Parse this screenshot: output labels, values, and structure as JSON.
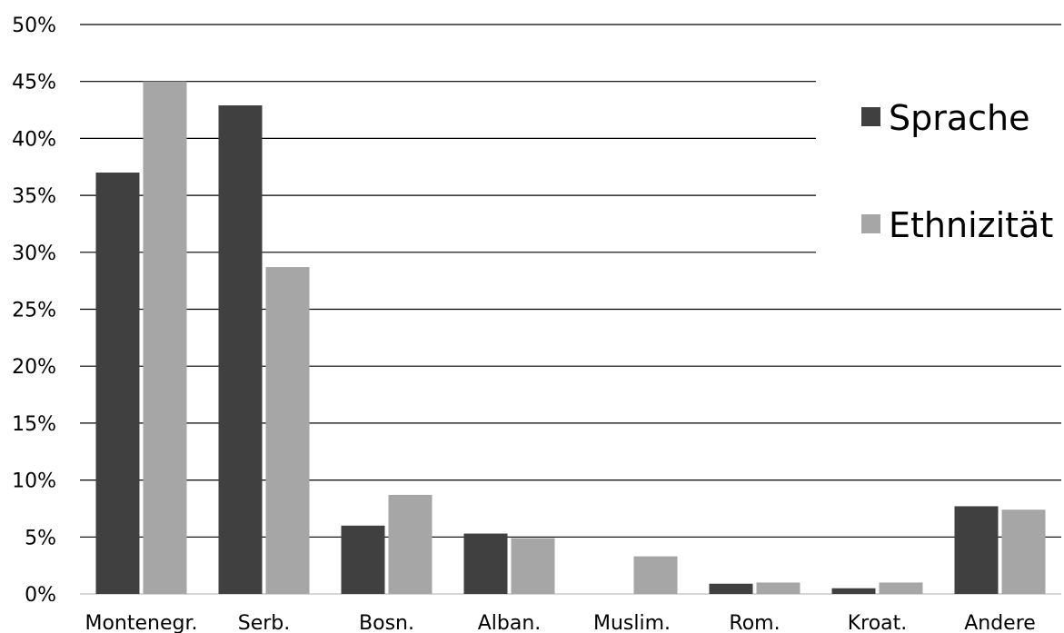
{
  "chart_data": {
    "type": "bar",
    "title": "",
    "xlabel": "",
    "ylabel": "",
    "ylim": [
      0,
      50
    ],
    "yticks": [
      0,
      5,
      10,
      15,
      20,
      25,
      30,
      35,
      40,
      45,
      50
    ],
    "ytick_labels": [
      "0%",
      "5%",
      "10%",
      "15%",
      "20%",
      "25%",
      "30%",
      "35%",
      "40%",
      "45%",
      "50%"
    ],
    "grid": true,
    "legend_position": "top-right",
    "categories": [
      "Montenegr.",
      "Serb.",
      "Bosn.",
      "Alban.",
      "Muslim.",
      "Rom.",
      "Kroat.",
      "Andere"
    ],
    "series": [
      {
        "name": "Sprache",
        "color": "#404040",
        "values": [
          37.0,
          42.9,
          6.0,
          5.3,
          0.0,
          0.9,
          0.5,
          7.7
        ]
      },
      {
        "name": "Ethnizität",
        "color": "#a6a6a6",
        "values": [
          45.0,
          28.7,
          8.7,
          4.9,
          3.3,
          1.0,
          1.0,
          7.4
        ]
      }
    ]
  }
}
